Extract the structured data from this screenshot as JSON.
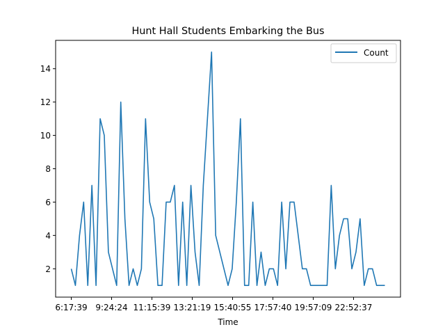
{
  "chart_data": {
    "type": "line",
    "title": "Hunt Hall Students Embarking the Bus",
    "xlabel": "Time",
    "ylabel": "",
    "ylim": [
      0.3,
      15.7
    ],
    "yticks": [
      2,
      4,
      6,
      8,
      10,
      12,
      14
    ],
    "x_tick_labels": [
      "6:17:39",
      "9:24:24",
      "11:15:39",
      "13:21:19",
      "15:40:55",
      "17:57:40",
      "19:57:09",
      "22:52:37"
    ],
    "grid": false,
    "legend_position": "top-right",
    "series": [
      {
        "name": "Count",
        "color": "#1f77b4",
        "values": [
          2,
          1,
          4,
          6,
          1,
          7,
          1,
          11,
          10,
          3,
          2,
          1,
          12,
          5,
          1,
          2,
          1,
          2,
          11,
          6,
          5,
          1,
          1,
          6,
          6,
          7,
          1,
          6,
          1,
          7,
          3,
          1,
          7,
          11,
          15,
          4,
          3,
          2,
          1,
          2,
          6,
          11,
          1,
          1,
          6,
          1,
          3,
          1,
          2,
          2,
          1,
          6,
          2,
          6,
          6,
          4,
          2,
          2,
          1,
          1,
          1,
          1,
          1,
          7,
          2,
          4,
          5,
          5,
          2,
          3,
          5,
          1,
          2,
          2,
          1,
          1,
          1
        ]
      }
    ]
  }
}
